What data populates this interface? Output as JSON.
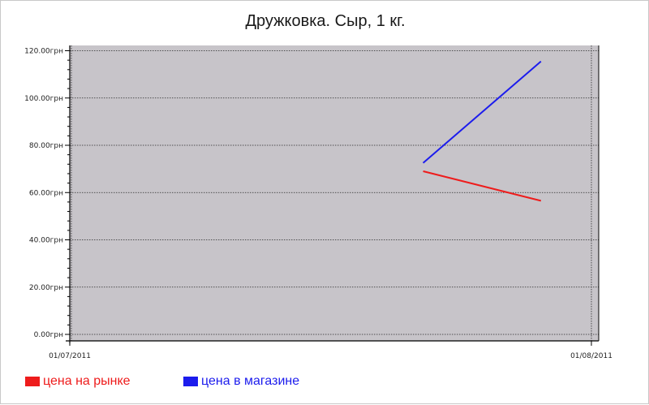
{
  "chart_data": {
    "type": "line",
    "title": "Дружковка. Сыр, 1 кг.",
    "xlabel": "",
    "ylabel": "",
    "x_range": [
      "2011-07-01",
      "2011-08-01"
    ],
    "x_ticks": [
      "01/07/2011",
      "01/08/2011"
    ],
    "ylim": [
      0,
      120
    ],
    "y_ticks": [
      "0.00грн",
      "20.00грн",
      "40.00грн",
      "60.00грн",
      "80.00грн",
      "100.00грн",
      "120.00грн"
    ],
    "y_tick_values": [
      0,
      20,
      40,
      60,
      80,
      100,
      120
    ],
    "grid": true,
    "legend_position": "bottom-left",
    "background_color": "#c7c4c9",
    "series": [
      {
        "name": "цена на рынке",
        "color": "#ee1c1c",
        "x": [
          "2011-07-22",
          "2011-07-29"
        ],
        "y": [
          69,
          56.5
        ]
      },
      {
        "name": "цена в магазине",
        "color": "#1c1ced",
        "x": [
          "2011-07-22",
          "2011-07-29"
        ],
        "y": [
          72.5,
          115.5
        ]
      }
    ]
  }
}
